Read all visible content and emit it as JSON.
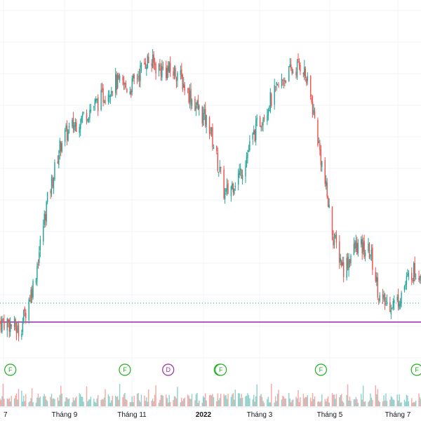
{
  "colors": {
    "up": "#26a69a",
    "down": "#ef5350",
    "grid": "#f0f3fa",
    "purple_line": "#9c27b0",
    "dotted_line": "#26a69a",
    "dividend_event": "#9c27b0",
    "financial_event": "#22ab22",
    "axis_text": "#131722"
  },
  "chart_data": {
    "type": "candlestick",
    "title": "",
    "xlabel": "",
    "ylabel": "",
    "price_scale": "relative",
    "ylim_relative": [
      0,
      100
    ],
    "x_ticks": [
      {
        "label": "7",
        "bold": false
      },
      {
        "label": "Tháng 9",
        "bold": false
      },
      {
        "label": "Tháng 11",
        "bold": false
      },
      {
        "label": "2022",
        "bold": true
      },
      {
        "label": "Tháng 3",
        "bold": false
      },
      {
        "label": "Tháng 5",
        "bold": false
      },
      {
        "label": "Tháng 7",
        "bold": false
      }
    ],
    "trend_anchors": [
      {
        "date": "2021-06-28",
        "price": 8
      },
      {
        "date": "2021-07-10",
        "price": 5
      },
      {
        "date": "2021-07-25",
        "price": 22
      },
      {
        "date": "2021-08-05",
        "price": 45
      },
      {
        "date": "2021-08-20",
        "price": 66
      },
      {
        "date": "2021-09-05",
        "price": 72
      },
      {
        "date": "2021-09-25",
        "price": 78
      },
      {
        "date": "2021-10-10",
        "price": 84
      },
      {
        "date": "2021-10-25",
        "price": 82
      },
      {
        "date": "2021-11-10",
        "price": 91
      },
      {
        "date": "2021-11-25",
        "price": 88
      },
      {
        "date": "2021-12-10",
        "price": 87
      },
      {
        "date": "2021-12-25",
        "price": 78
      },
      {
        "date": "2022-01-10",
        "price": 70
      },
      {
        "date": "2022-01-25",
        "price": 48
      },
      {
        "date": "2022-02-10",
        "price": 56
      },
      {
        "date": "2022-02-25",
        "price": 70
      },
      {
        "date": "2022-03-10",
        "price": 78
      },
      {
        "date": "2022-03-25",
        "price": 86
      },
      {
        "date": "2022-04-10",
        "price": 90
      },
      {
        "date": "2022-04-20",
        "price": 76
      },
      {
        "date": "2022-05-01",
        "price": 54
      },
      {
        "date": "2022-05-10",
        "price": 35
      },
      {
        "date": "2022-05-20",
        "price": 25
      },
      {
        "date": "2022-06-01",
        "price": 32
      },
      {
        "date": "2022-06-15",
        "price": 30
      },
      {
        "date": "2022-06-25",
        "price": 14
      },
      {
        "date": "2022-07-10",
        "price": 14
      },
      {
        "date": "2022-07-25",
        "price": 24
      }
    ],
    "horizontal_lines": [
      {
        "kind": "dotted",
        "price": 14
      },
      {
        "kind": "solid",
        "price": 8
      }
    ],
    "events": [
      {
        "date": "2021-07-01",
        "label": "F",
        "kind": "financial"
      },
      {
        "date": "2021-10-20",
        "label": "F",
        "kind": "financial"
      },
      {
        "date": "2021-12-01",
        "label": "D",
        "kind": "dividend"
      },
      {
        "date": "2022-01-20",
        "label": "F",
        "kind": "financial"
      },
      {
        "date": "2022-01-21",
        "label": "F",
        "kind": "financial"
      },
      {
        "date": "2022-04-28",
        "label": "F",
        "kind": "financial"
      },
      {
        "date": "2022-07-30",
        "label": "F",
        "kind": "financial"
      }
    ],
    "volume": "present",
    "grid": true,
    "legend": "none"
  }
}
